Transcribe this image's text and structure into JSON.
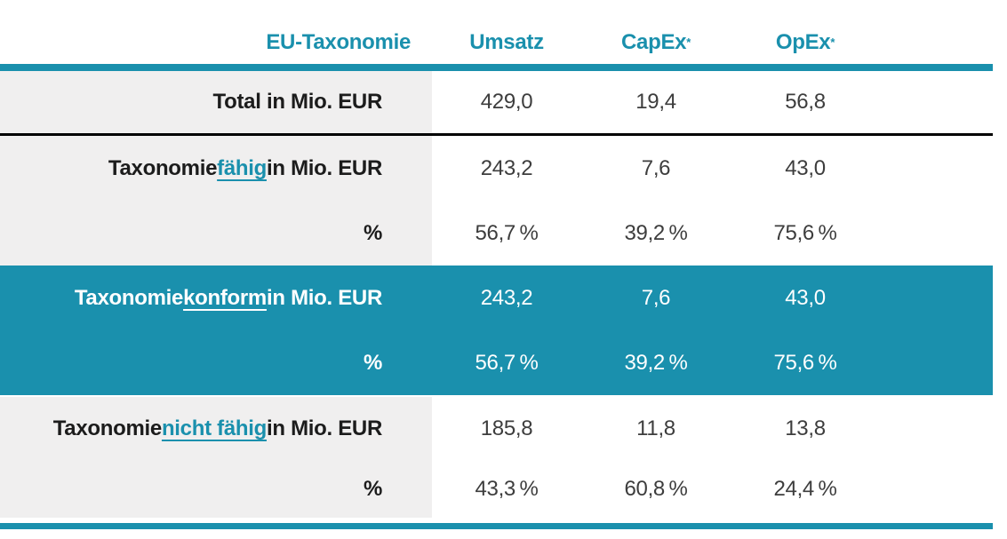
{
  "chart_data": {
    "type": "table",
    "corner_label": "EU-Taxonomie",
    "columns": [
      "Umsatz",
      "CapEx",
      "OpEx"
    ],
    "column_marks": [
      "",
      "*",
      "*"
    ],
    "rows": [
      {
        "label_pre": "Total in Mio. EUR",
        "label_emph": "",
        "label_post": "",
        "values": [
          "429,0",
          "19,4",
          "56,8"
        ],
        "values_numeric": [
          429.0,
          19.4,
          56.8
        ],
        "highlight": false
      },
      {
        "label_pre": "Taxonomie ",
        "label_emph": "fähig",
        "label_post": " in Mio. EUR",
        "values": [
          "243,2",
          "7,6",
          "43,0"
        ],
        "values_numeric": [
          243.2,
          7.6,
          43.0
        ],
        "highlight": false
      },
      {
        "label_pre": "%",
        "label_emph": "",
        "label_post": "",
        "values": [
          "56,7 %",
          "39,2 %",
          "75,6 %"
        ],
        "values_numeric": [
          56.7,
          39.2,
          75.6
        ],
        "highlight": false
      },
      {
        "label_pre": "Taxonomie ",
        "label_emph": "konform",
        "label_post": " in Mio. EUR",
        "values": [
          "243,2",
          "7,6",
          "43,0"
        ],
        "values_numeric": [
          243.2,
          7.6,
          43.0
        ],
        "highlight": true
      },
      {
        "label_pre": "%",
        "label_emph": "",
        "label_post": "",
        "values": [
          "56,7 %",
          "39,2 %",
          "75,6 %"
        ],
        "values_numeric": [
          56.7,
          39.2,
          75.6
        ],
        "highlight": true
      },
      {
        "label_pre": "Taxonomie ",
        "label_emph": "nicht fähig",
        "label_post": " in Mio. EUR",
        "values": [
          "185,8",
          "11,8",
          "13,8"
        ],
        "values_numeric": [
          185.8,
          11.8,
          13.8
        ],
        "highlight": false
      },
      {
        "label_pre": "%",
        "label_emph": "",
        "label_post": "",
        "values": [
          "43,3 %",
          "60,8 %",
          "24,4 %"
        ],
        "values_numeric": [
          43.3,
          60.8,
          24.4
        ],
        "highlight": false
      }
    ],
    "colors": {
      "accent": "#1a90ad",
      "row_bg": "#f0efef",
      "label_text": "#1c1c1c",
      "value_text": "#3d3d3d",
      "highlight_text": "#ffffff",
      "black_rule": "#000000"
    },
    "layout": {
      "legend": "none",
      "grid": "horizontal rules only"
    }
  }
}
